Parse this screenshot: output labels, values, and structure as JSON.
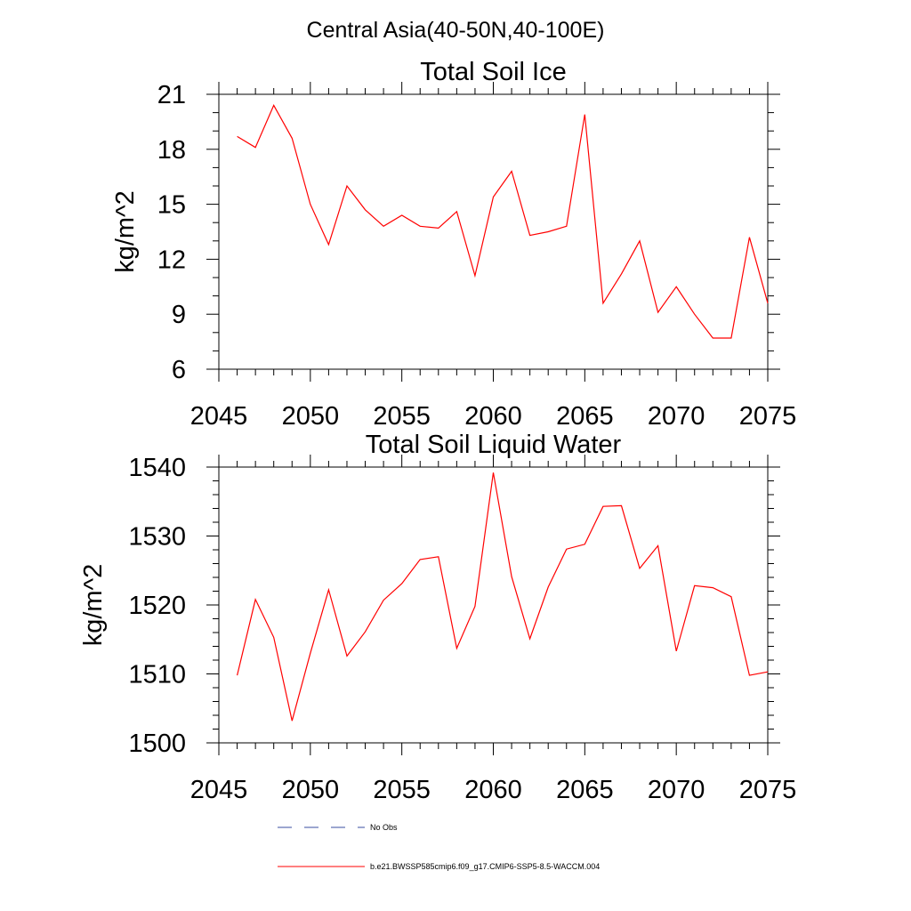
{
  "page": {
    "title": "Central Asia(40-50N,40-100E)"
  },
  "colors": {
    "series": "#ff0000",
    "obs": "#3a4ea0",
    "axis": "#000000"
  },
  "legend": {
    "obs_label": "No Obs",
    "model_label": "b.e21.BWSSP585cmip6.f09_g17.CMIP6-SSP5-8.5-WACCM.004"
  },
  "chart_data": [
    {
      "type": "line",
      "title": "Total Soil Ice",
      "xlabel": "",
      "ylabel": "kg/m^2",
      "xlim": [
        2045,
        2075
      ],
      "ylim": [
        6,
        21
      ],
      "x_major_ticks": [
        2045,
        2050,
        2055,
        2060,
        2065,
        2070,
        2075
      ],
      "y_major_ticks": [
        6,
        9,
        12,
        15,
        18,
        21
      ],
      "x_minor_step": 1,
      "y_minor_step": 1,
      "grid": false,
      "series": [
        {
          "x": [
            2046,
            2047,
            2048,
            2049,
            2050,
            2051,
            2052,
            2053,
            2054,
            2055,
            2056,
            2057,
            2058,
            2059,
            2060,
            2061,
            2062,
            2063,
            2064,
            2065,
            2066,
            2067,
            2068,
            2069,
            2070,
            2071,
            2072,
            2073,
            2074,
            2075
          ],
          "values": [
            18.7,
            18.1,
            20.4,
            18.6,
            15.0,
            12.8,
            16.0,
            14.7,
            13.8,
            14.4,
            13.8,
            13.7,
            14.6,
            11.1,
            15.4,
            16.8,
            13.3,
            13.5,
            13.8,
            19.9,
            9.6,
            11.2,
            13.0,
            9.1,
            10.5,
            9.0,
            7.7,
            7.7,
            13.2,
            9.6
          ]
        }
      ]
    },
    {
      "type": "line",
      "title": "Total Soil Liquid Water",
      "xlabel": "",
      "ylabel": "kg/m^2",
      "xlim": [
        2045,
        2075
      ],
      "ylim": [
        1500,
        1540
      ],
      "x_major_ticks": [
        2045,
        2050,
        2055,
        2060,
        2065,
        2070,
        2075
      ],
      "y_major_ticks": [
        1500,
        1510,
        1520,
        1530,
        1540
      ],
      "x_minor_step": 1,
      "y_minor_step": 2,
      "grid": false,
      "series": [
        {
          "x": [
            2046,
            2047,
            2048,
            2049,
            2050,
            2051,
            2052,
            2053,
            2054,
            2055,
            2056,
            2057,
            2058,
            2059,
            2060,
            2061,
            2062,
            2063,
            2064,
            2065,
            2066,
            2067,
            2068,
            2069,
            2070,
            2071,
            2072,
            2073,
            2074,
            2075
          ],
          "values": [
            1509.8,
            1520.8,
            1515.3,
            1503.2,
            1513.0,
            1522.2,
            1512.6,
            1516.1,
            1520.7,
            1523.1,
            1526.6,
            1527.0,
            1513.7,
            1519.8,
            1539.2,
            1524.1,
            1515.1,
            1522.6,
            1528.1,
            1528.8,
            1534.3,
            1534.4,
            1525.3,
            1528.6,
            1513.3,
            1522.8,
            1522.5,
            1521.2,
            1509.8,
            1510.3
          ]
        }
      ]
    }
  ]
}
